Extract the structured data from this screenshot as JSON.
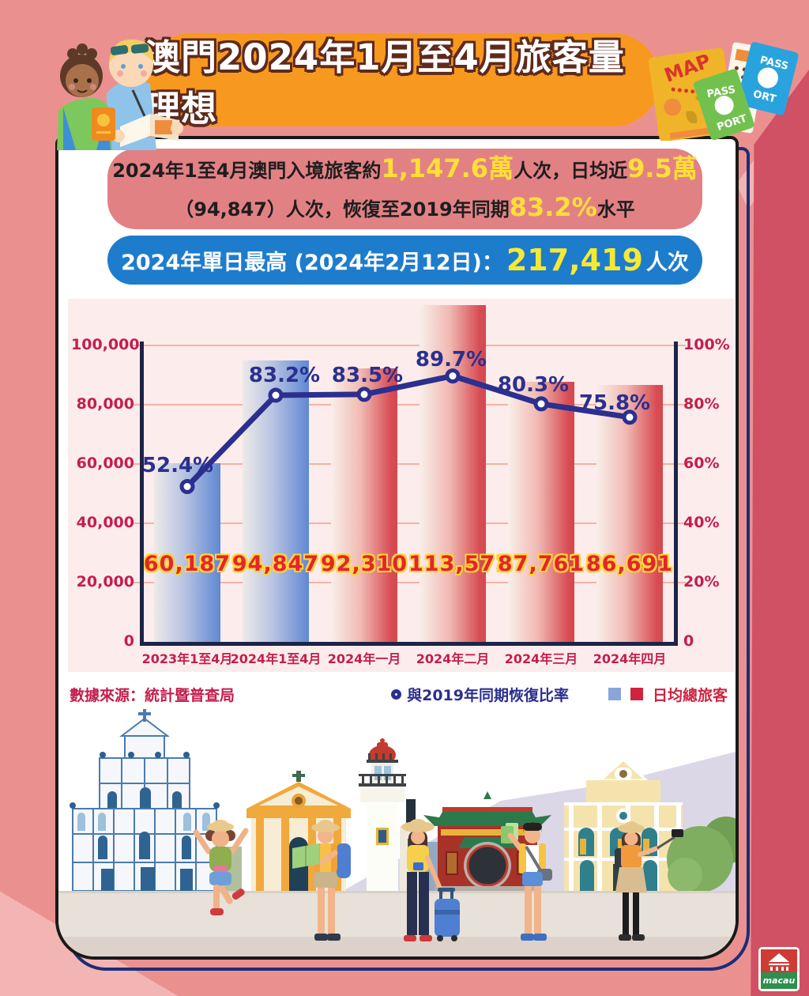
{
  "header": {
    "title": "澳門2024年1月至4月旅客量理想",
    "props": {
      "map": "MAP",
      "pass": "PASS",
      "port": "PORT",
      "ort": "ORT"
    }
  },
  "summary_box": {
    "s1": "2024年1至4月澳門入境旅客約",
    "s2": "1,147.6萬",
    "s3": "人次，日均近",
    "s4": "9.5萬",
    "s5": "（94,847）人次，恢復至2019年同期",
    "s6": "83.2%",
    "s7": "水平"
  },
  "record_box": {
    "r1": "2024年單日最高 (2024年2月12日)：",
    "r2": "217,419",
    "r3": "人次"
  },
  "chart_data": {
    "type": "bar",
    "categories": [
      "2023年1至4月",
      "2024年1至4月",
      "2024年一月",
      "2024年二月",
      "2024年三月",
      "2024年四月"
    ],
    "series": [
      {
        "name": "日均總旅客",
        "type": "bar",
        "values": [
          60187,
          94847,
          92310,
          113571,
          87761,
          86691
        ],
        "value_labels": [
          "60,187",
          "94,847",
          "92,310",
          "113,571",
          "87,761",
          "86,691"
        ],
        "bar_colors": [
          "blue",
          "blue",
          "red",
          "red",
          "red",
          "red"
        ]
      },
      {
        "name": "與2019年同期恢復比率",
        "type": "line",
        "values": [
          52.4,
          83.2,
          83.5,
          89.7,
          80.3,
          75.8
        ],
        "point_labels": [
          "52.4%",
          "83.2%",
          "83.5%",
          "89.7%",
          "80.3%",
          "75.8%"
        ],
        "color": "#2b2f8f"
      }
    ],
    "left_axis": {
      "ticks": [
        "100,000",
        "80,000",
        "60,000",
        "40,000",
        "20,000",
        "0"
      ],
      "max": 100000,
      "min": 0
    },
    "right_axis": {
      "ticks": [
        "100%",
        "80%",
        "60%",
        "40%",
        "20%",
        "0"
      ],
      "max": 100,
      "min": 0
    },
    "grid": true,
    "legend_position": "bottom-right"
  },
  "footer": {
    "source": "數據來源：統計暨普查局",
    "legend_line": "與2019年同期恢復比率",
    "legend_bars": "日均總旅客"
  },
  "logo": {
    "text": "macau"
  }
}
